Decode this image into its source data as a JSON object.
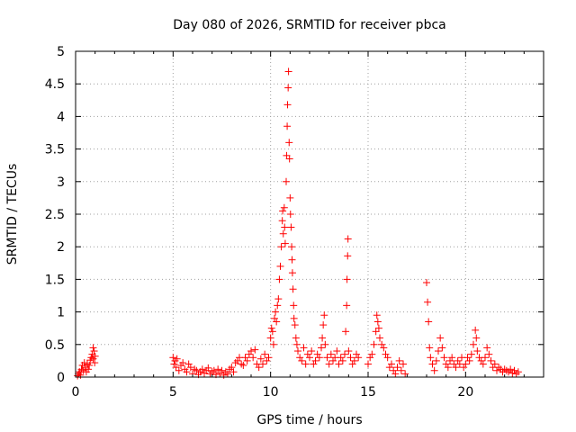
{
  "chart_data": {
    "type": "scatter",
    "title": "Day 080 of 2026, SRMTID for receiver pbca",
    "xlabel": "GPS time / hours",
    "ylabel": "SRMTID / TECUs",
    "xlim": [
      0,
      24
    ],
    "ylim": [
      0,
      5
    ],
    "xticks": [
      0,
      5,
      10,
      15,
      20
    ],
    "yticks": [
      0,
      0.5,
      1,
      1.5,
      2,
      2.5,
      3,
      3.5,
      4,
      4.5,
      5
    ],
    "grid": true,
    "marker": "+",
    "color": "#ff0000",
    "series": [
      {
        "name": "SRMTID",
        "points": [
          [
            0.1,
            0.02
          ],
          [
            0.15,
            0.05
          ],
          [
            0.2,
            0.08
          ],
          [
            0.25,
            0.03
          ],
          [
            0.3,
            0.12
          ],
          [
            0.35,
            0.18
          ],
          [
            0.4,
            0.1
          ],
          [
            0.45,
            0.22
          ],
          [
            0.5,
            0.15
          ],
          [
            0.55,
            0.08
          ],
          [
            0.6,
            0.2
          ],
          [
            0.65,
            0.12
          ],
          [
            0.7,
            0.18
          ],
          [
            0.75,
            0.26
          ],
          [
            0.8,
            0.3
          ],
          [
            0.85,
            0.35
          ],
          [
            0.9,
            0.28
          ],
          [
            0.95,
            0.4
          ],
          [
            1.0,
            0.32
          ],
          [
            0.9,
            0.45
          ],
          [
            0.98,
            0.22
          ],
          [
            5.0,
            0.3
          ],
          [
            5.05,
            0.2
          ],
          [
            5.1,
            0.25
          ],
          [
            5.15,
            0.15
          ],
          [
            5.2,
            0.28
          ],
          [
            5.3,
            0.1
          ],
          [
            5.4,
            0.18
          ],
          [
            5.5,
            0.22
          ],
          [
            5.6,
            0.12
          ],
          [
            5.7,
            0.08
          ],
          [
            5.8,
            0.2
          ],
          [
            5.9,
            0.15
          ],
          [
            6.0,
            0.05
          ],
          [
            6.1,
            0.12
          ],
          [
            6.2,
            0.1
          ],
          [
            6.3,
            0.04
          ],
          [
            6.4,
            0.08
          ],
          [
            6.5,
            0.12
          ],
          [
            6.6,
            0.06
          ],
          [
            6.7,
            0.1
          ],
          [
            6.8,
            0.14
          ],
          [
            6.9,
            0.05
          ],
          [
            7.0,
            0.08
          ],
          [
            7.1,
            0.1
          ],
          [
            7.2,
            0.04
          ],
          [
            7.3,
            0.12
          ],
          [
            7.4,
            0.06
          ],
          [
            7.5,
            0.1
          ],
          [
            7.6,
            0.03
          ],
          [
            7.7,
            0.08
          ],
          [
            7.8,
            0.05
          ],
          [
            7.9,
            0.12
          ],
          [
            8.0,
            0.15
          ],
          [
            8.1,
            0.08
          ],
          [
            8.2,
            0.22
          ],
          [
            8.3,
            0.25
          ],
          [
            8.4,
            0.3
          ],
          [
            8.5,
            0.2
          ],
          [
            8.6,
            0.18
          ],
          [
            8.7,
            0.3
          ],
          [
            8.8,
            0.25
          ],
          [
            8.9,
            0.35
          ],
          [
            9.0,
            0.4
          ],
          [
            9.1,
            0.3
          ],
          [
            9.2,
            0.42
          ],
          [
            9.3,
            0.2
          ],
          [
            9.4,
            0.15
          ],
          [
            9.5,
            0.28
          ],
          [
            9.6,
            0.2
          ],
          [
            9.7,
            0.35
          ],
          [
            9.8,
            0.25
          ],
          [
            9.9,
            0.3
          ],
          [
            10.0,
            0.6
          ],
          [
            10.05,
            0.75
          ],
          [
            10.1,
            0.7
          ],
          [
            10.15,
            0.5
          ],
          [
            10.2,
            0.9
          ],
          [
            10.25,
            1.0
          ],
          [
            10.3,
            0.85
          ],
          [
            10.35,
            1.1
          ],
          [
            10.4,
            1.2
          ],
          [
            10.45,
            1.5
          ],
          [
            10.5,
            1.7
          ],
          [
            10.55,
            2.0
          ],
          [
            10.6,
            2.4
          ],
          [
            10.62,
            2.55
          ],
          [
            10.65,
            2.2
          ],
          [
            10.7,
            2.6
          ],
          [
            10.72,
            2.3
          ],
          [
            10.75,
            2.05
          ],
          [
            10.8,
            3.0
          ],
          [
            10.82,
            3.4
          ],
          [
            10.85,
            3.85
          ],
          [
            10.87,
            4.18
          ],
          [
            10.9,
            4.44
          ],
          [
            10.92,
            4.69
          ],
          [
            10.95,
            3.6
          ],
          [
            10.97,
            3.35
          ],
          [
            11.0,
            2.75
          ],
          [
            11.02,
            2.5
          ],
          [
            11.05,
            2.3
          ],
          [
            11.08,
            2.0
          ],
          [
            11.1,
            1.8
          ],
          [
            11.12,
            1.6
          ],
          [
            11.15,
            1.35
          ],
          [
            11.18,
            1.1
          ],
          [
            11.2,
            0.9
          ],
          [
            11.25,
            0.8
          ],
          [
            11.3,
            0.6
          ],
          [
            11.35,
            0.5
          ],
          [
            11.4,
            0.4
          ],
          [
            11.5,
            0.3
          ],
          [
            11.6,
            0.25
          ],
          [
            11.7,
            0.45
          ],
          [
            11.8,
            0.2
          ],
          [
            11.9,
            0.35
          ],
          [
            12.0,
            0.3
          ],
          [
            12.1,
            0.4
          ],
          [
            12.2,
            0.2
          ],
          [
            12.3,
            0.25
          ],
          [
            12.4,
            0.35
          ],
          [
            12.5,
            0.3
          ],
          [
            12.6,
            0.45
          ],
          [
            12.65,
            0.6
          ],
          [
            12.7,
            0.8
          ],
          [
            12.75,
            0.95
          ],
          [
            12.8,
            0.5
          ],
          [
            12.9,
            0.3
          ],
          [
            13.0,
            0.2
          ],
          [
            13.1,
            0.35
          ],
          [
            13.2,
            0.25
          ],
          [
            13.3,
            0.3
          ],
          [
            13.4,
            0.4
          ],
          [
            13.5,
            0.2
          ],
          [
            13.6,
            0.3
          ],
          [
            13.7,
            0.25
          ],
          [
            13.8,
            0.35
          ],
          [
            13.85,
            0.7
          ],
          [
            13.9,
            1.1
          ],
          [
            13.92,
            1.5
          ],
          [
            13.95,
            1.86
          ],
          [
            13.97,
            2.12
          ],
          [
            14.0,
            0.4
          ],
          [
            14.1,
            0.3
          ],
          [
            14.2,
            0.2
          ],
          [
            14.3,
            0.25
          ],
          [
            14.4,
            0.35
          ],
          [
            14.5,
            0.3
          ],
          [
            15.0,
            0.2
          ],
          [
            15.1,
            0.3
          ],
          [
            15.2,
            0.35
          ],
          [
            15.3,
            0.5
          ],
          [
            15.4,
            0.7
          ],
          [
            15.45,
            0.95
          ],
          [
            15.5,
            0.85
          ],
          [
            15.55,
            0.75
          ],
          [
            15.6,
            0.6
          ],
          [
            15.7,
            0.5
          ],
          [
            15.8,
            0.45
          ],
          [
            15.9,
            0.35
          ],
          [
            16.0,
            0.3
          ],
          [
            16.1,
            0.15
          ],
          [
            16.2,
            0.2
          ],
          [
            16.3,
            0.1
          ],
          [
            16.4,
            0.05
          ],
          [
            16.5,
            0.15
          ],
          [
            16.6,
            0.25
          ],
          [
            16.7,
            0.1
          ],
          [
            16.8,
            0.2
          ],
          [
            16.9,
            0.05
          ],
          [
            18.0,
            1.45
          ],
          [
            18.05,
            1.15
          ],
          [
            18.1,
            0.85
          ],
          [
            18.15,
            0.45
          ],
          [
            18.2,
            0.3
          ],
          [
            18.3,
            0.2
          ],
          [
            18.4,
            0.1
          ],
          [
            18.5,
            0.25
          ],
          [
            18.6,
            0.4
          ],
          [
            18.7,
            0.6
          ],
          [
            18.8,
            0.45
          ],
          [
            18.9,
            0.3
          ],
          [
            19.0,
            0.2
          ],
          [
            19.1,
            0.15
          ],
          [
            19.2,
            0.25
          ],
          [
            19.3,
            0.3
          ],
          [
            19.4,
            0.2
          ],
          [
            19.5,
            0.15
          ],
          [
            19.6,
            0.25
          ],
          [
            19.7,
            0.2
          ],
          [
            19.8,
            0.3
          ],
          [
            19.9,
            0.15
          ],
          [
            20.0,
            0.2
          ],
          [
            20.1,
            0.3
          ],
          [
            20.2,
            0.25
          ],
          [
            20.3,
            0.35
          ],
          [
            20.4,
            0.5
          ],
          [
            20.5,
            0.72
          ],
          [
            20.55,
            0.6
          ],
          [
            20.6,
            0.4
          ],
          [
            20.7,
            0.3
          ],
          [
            20.8,
            0.25
          ],
          [
            20.9,
            0.2
          ],
          [
            21.0,
            0.3
          ],
          [
            21.1,
            0.45
          ],
          [
            21.2,
            0.35
          ],
          [
            21.3,
            0.25
          ],
          [
            21.4,
            0.15
          ],
          [
            21.5,
            0.2
          ],
          [
            21.6,
            0.1
          ],
          [
            21.7,
            0.15
          ],
          [
            21.8,
            0.12
          ],
          [
            21.9,
            0.08
          ],
          [
            22.0,
            0.12
          ],
          [
            22.1,
            0.1
          ],
          [
            22.2,
            0.08
          ],
          [
            22.3,
            0.12
          ],
          [
            22.4,
            0.06
          ],
          [
            22.5,
            0.1
          ],
          [
            22.6,
            0.05
          ],
          [
            22.7,
            0.08
          ]
        ]
      }
    ]
  }
}
